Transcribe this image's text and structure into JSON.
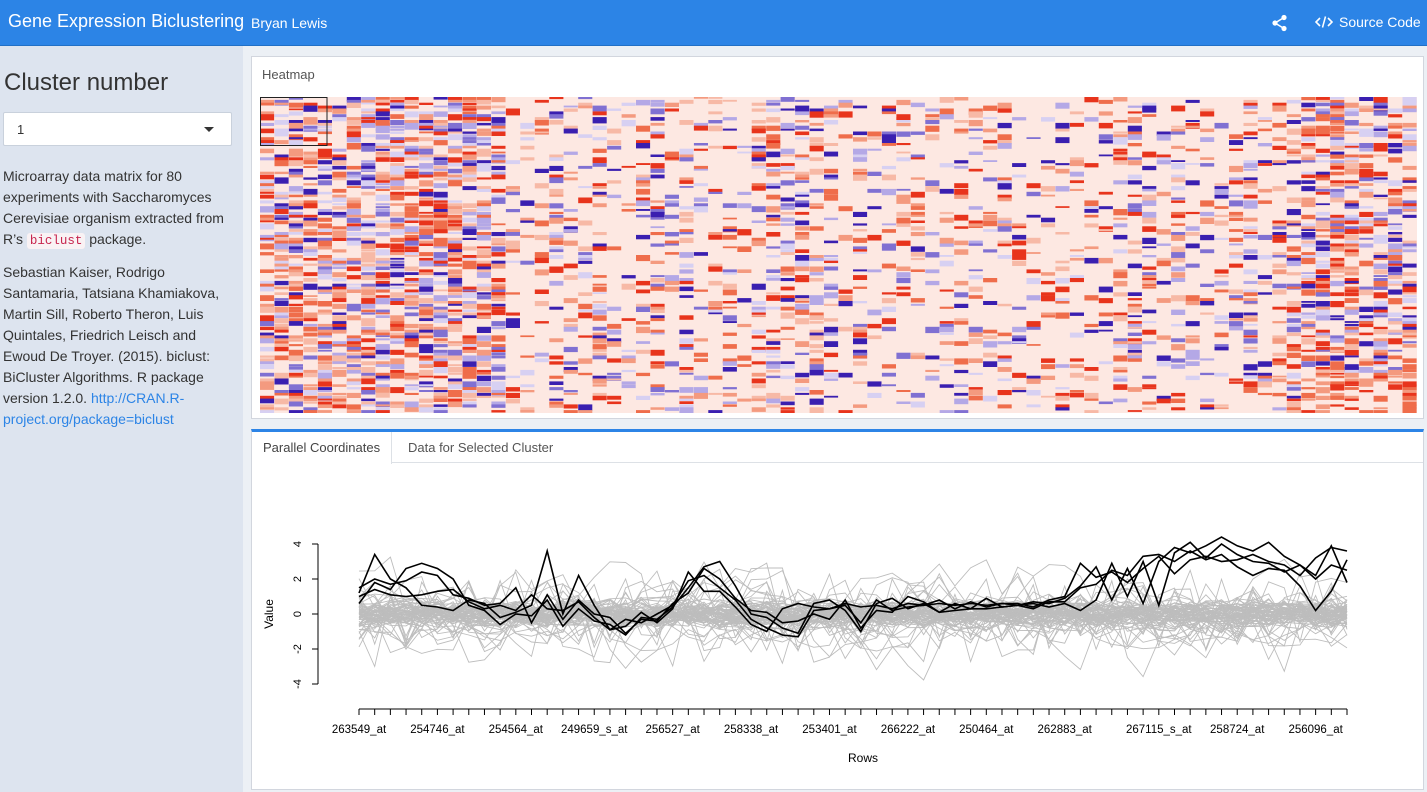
{
  "navbar": {
    "title": "Gene Expression Biclustering",
    "author": "Bryan Lewis",
    "share_icon": "share-icon",
    "source_label": "Source Code",
    "source_icon": "code-icon",
    "color": "#2c84e6"
  },
  "sidebar": {
    "heading": "Cluster number",
    "cluster_select": {
      "value": "1"
    },
    "desc": {
      "pre": "Microarray data matrix for 80 experiments with Saccharomyces Cerevisiae organism extracted from R’s ",
      "code": "biclust",
      "post": " package."
    },
    "citation": {
      "text": "Sebastian Kaiser, Rodrigo Santamaria, Tatsiana Khamiakova, Martin Sill, Roberto Theron, Luis Quintales, Friedrich Leisch and Ewoud De Troyer. (2015). biclust: BiCluster Algorithms. R package version 1.2.0. ",
      "link": "http://CRAN.R-project.org/package=biclust"
    }
  },
  "heatmap": {
    "title": "Heatmap",
    "colors": {
      "low": "#3a1fb0",
      "mid": "#fde6e0",
      "high": "#e8341c"
    }
  },
  "tabs": [
    {
      "label": "Parallel Coordinates",
      "active": true
    },
    {
      "label": "Data for Selected Cluster",
      "active": false
    }
  ],
  "chart_data": {
    "type": "line",
    "xlabel": "Rows",
    "ylabel": "Value",
    "ylim": [
      -4,
      4
    ],
    "yticks": [
      4,
      2,
      0,
      -2,
      -4
    ],
    "xtick_labels": [
      "263549_at",
      "254746_at",
      "254564_at",
      "249659_s_at",
      "256527_at",
      "258338_at",
      "253401_at",
      "266222_at",
      "250464_at",
      "262883_at",
      "267115_s_at",
      "258724_at",
      "256096_at"
    ],
    "n_points": 64,
    "highlight_color": "#000000",
    "background_color": "#bdbdbd",
    "highlighted_series": [
      [
        1.2,
        3.4,
        2.0,
        1.5,
        0.5,
        0.4,
        0.2,
        0.8,
        0.6,
        -0.2,
        0.1,
        0.5,
        3.6,
        0.0,
        2.2,
        0.5,
        -0.9,
        -0.7,
        0.1,
        -0.5,
        0.3,
        2.4,
        1.3,
        1.3,
        0.4,
        -0.6,
        -1.0,
        0.3,
        0.6,
        0.4,
        0.3,
        0.6,
        0.4,
        0.5,
        0.3,
        0.6,
        0.5,
        0.6,
        0.5,
        0.6,
        0.5,
        0.6,
        0.6,
        0.4,
        0.8,
        1.0,
        2.9,
        2.1,
        2.4,
        1.8,
        2.6,
        3.3,
        2.3,
        3.1,
        3.3,
        3.0,
        3.1,
        3.4,
        3.0,
        2.8,
        2.2,
        3.2,
        3.8,
        3.6
      ],
      [
        1.5,
        2.0,
        1.7,
        1.9,
        2.4,
        2.2,
        1.1,
        0.9,
        0.5,
        0.6,
        1.5,
        -0.5,
        1.1,
        -0.3,
        0.8,
        0.0,
        -0.2,
        -1.1,
        -0.3,
        -0.4,
        0.6,
        1.2,
        2.6,
        2.0,
        0.9,
        0.2,
        0.1,
        -0.5,
        -0.4,
        0.0,
        -0.3,
        0.8,
        -0.8,
        0.2,
        0.1,
        1.0,
        0.7,
        0.1,
        0.6,
        0.3,
        0.3,
        0.4,
        0.5,
        0.7,
        0.6,
        0.9,
        1.6,
        2.7,
        0.8,
        2.6,
        0.6,
        3.0,
        3.8,
        3.5,
        3.9,
        4.4,
        3.9,
        3.6,
        4.1,
        3.3,
        2.8,
        2.0,
        2.8,
        2.5
      ],
      [
        0.6,
        1.8,
        1.4,
        2.6,
        2.9,
        2.6,
        2.0,
        0.5,
        0.2,
        -0.6,
        0.0,
        -0.1,
        0.8,
        -0.7,
        0.3,
        -0.4,
        -0.6,
        -1.2,
        -0.2,
        -0.3,
        0.4,
        1.5,
        2.7,
        3.0,
        1.6,
        0.0,
        -0.2,
        -0.8,
        -1.1,
        0.6,
        0.8,
        0.2,
        -1.0,
        0.6,
        0.9,
        0.3,
        0.6,
        0.1,
        0.2,
        0.3,
        0.9,
        0.4,
        0.5,
        0.6,
        0.4,
        0.6,
        0.2,
        0.8,
        2.9,
        1.0,
        3.0,
        0.5,
        3.5,
        4.1,
        3.2,
        4.0,
        3.4,
        3.0,
        2.9,
        2.4,
        2.8,
        2.2,
        3.9,
        1.8
      ],
      [
        1.0,
        1.4,
        1.1,
        1.0,
        1.1,
        1.3,
        1.4,
        0.7,
        0.3,
        0.5,
        0.2,
        1.1,
        0.3,
        0.2,
        0.7,
        -0.2,
        -0.9,
        -0.3,
        -0.5,
        0.0,
        0.5,
        1.9,
        2.2,
        1.5,
        0.8,
        -0.3,
        -0.8,
        -1.2,
        -1.3,
        0.2,
        0.3,
        0.5,
        -0.5,
        0.8,
        0.2,
        0.4,
        0.5,
        0.8,
        0.3,
        0.7,
        0.4,
        0.6,
        0.5,
        0.3,
        0.7,
        0.7,
        1.5,
        1.7,
        2.5,
        2.2,
        3.3,
        3.4,
        3.0,
        3.6,
        3.1,
        3.4,
        2.7,
        2.2,
        2.6,
        2.5,
        1.6,
        0.2,
        1.3,
        3.1
      ]
    ]
  }
}
